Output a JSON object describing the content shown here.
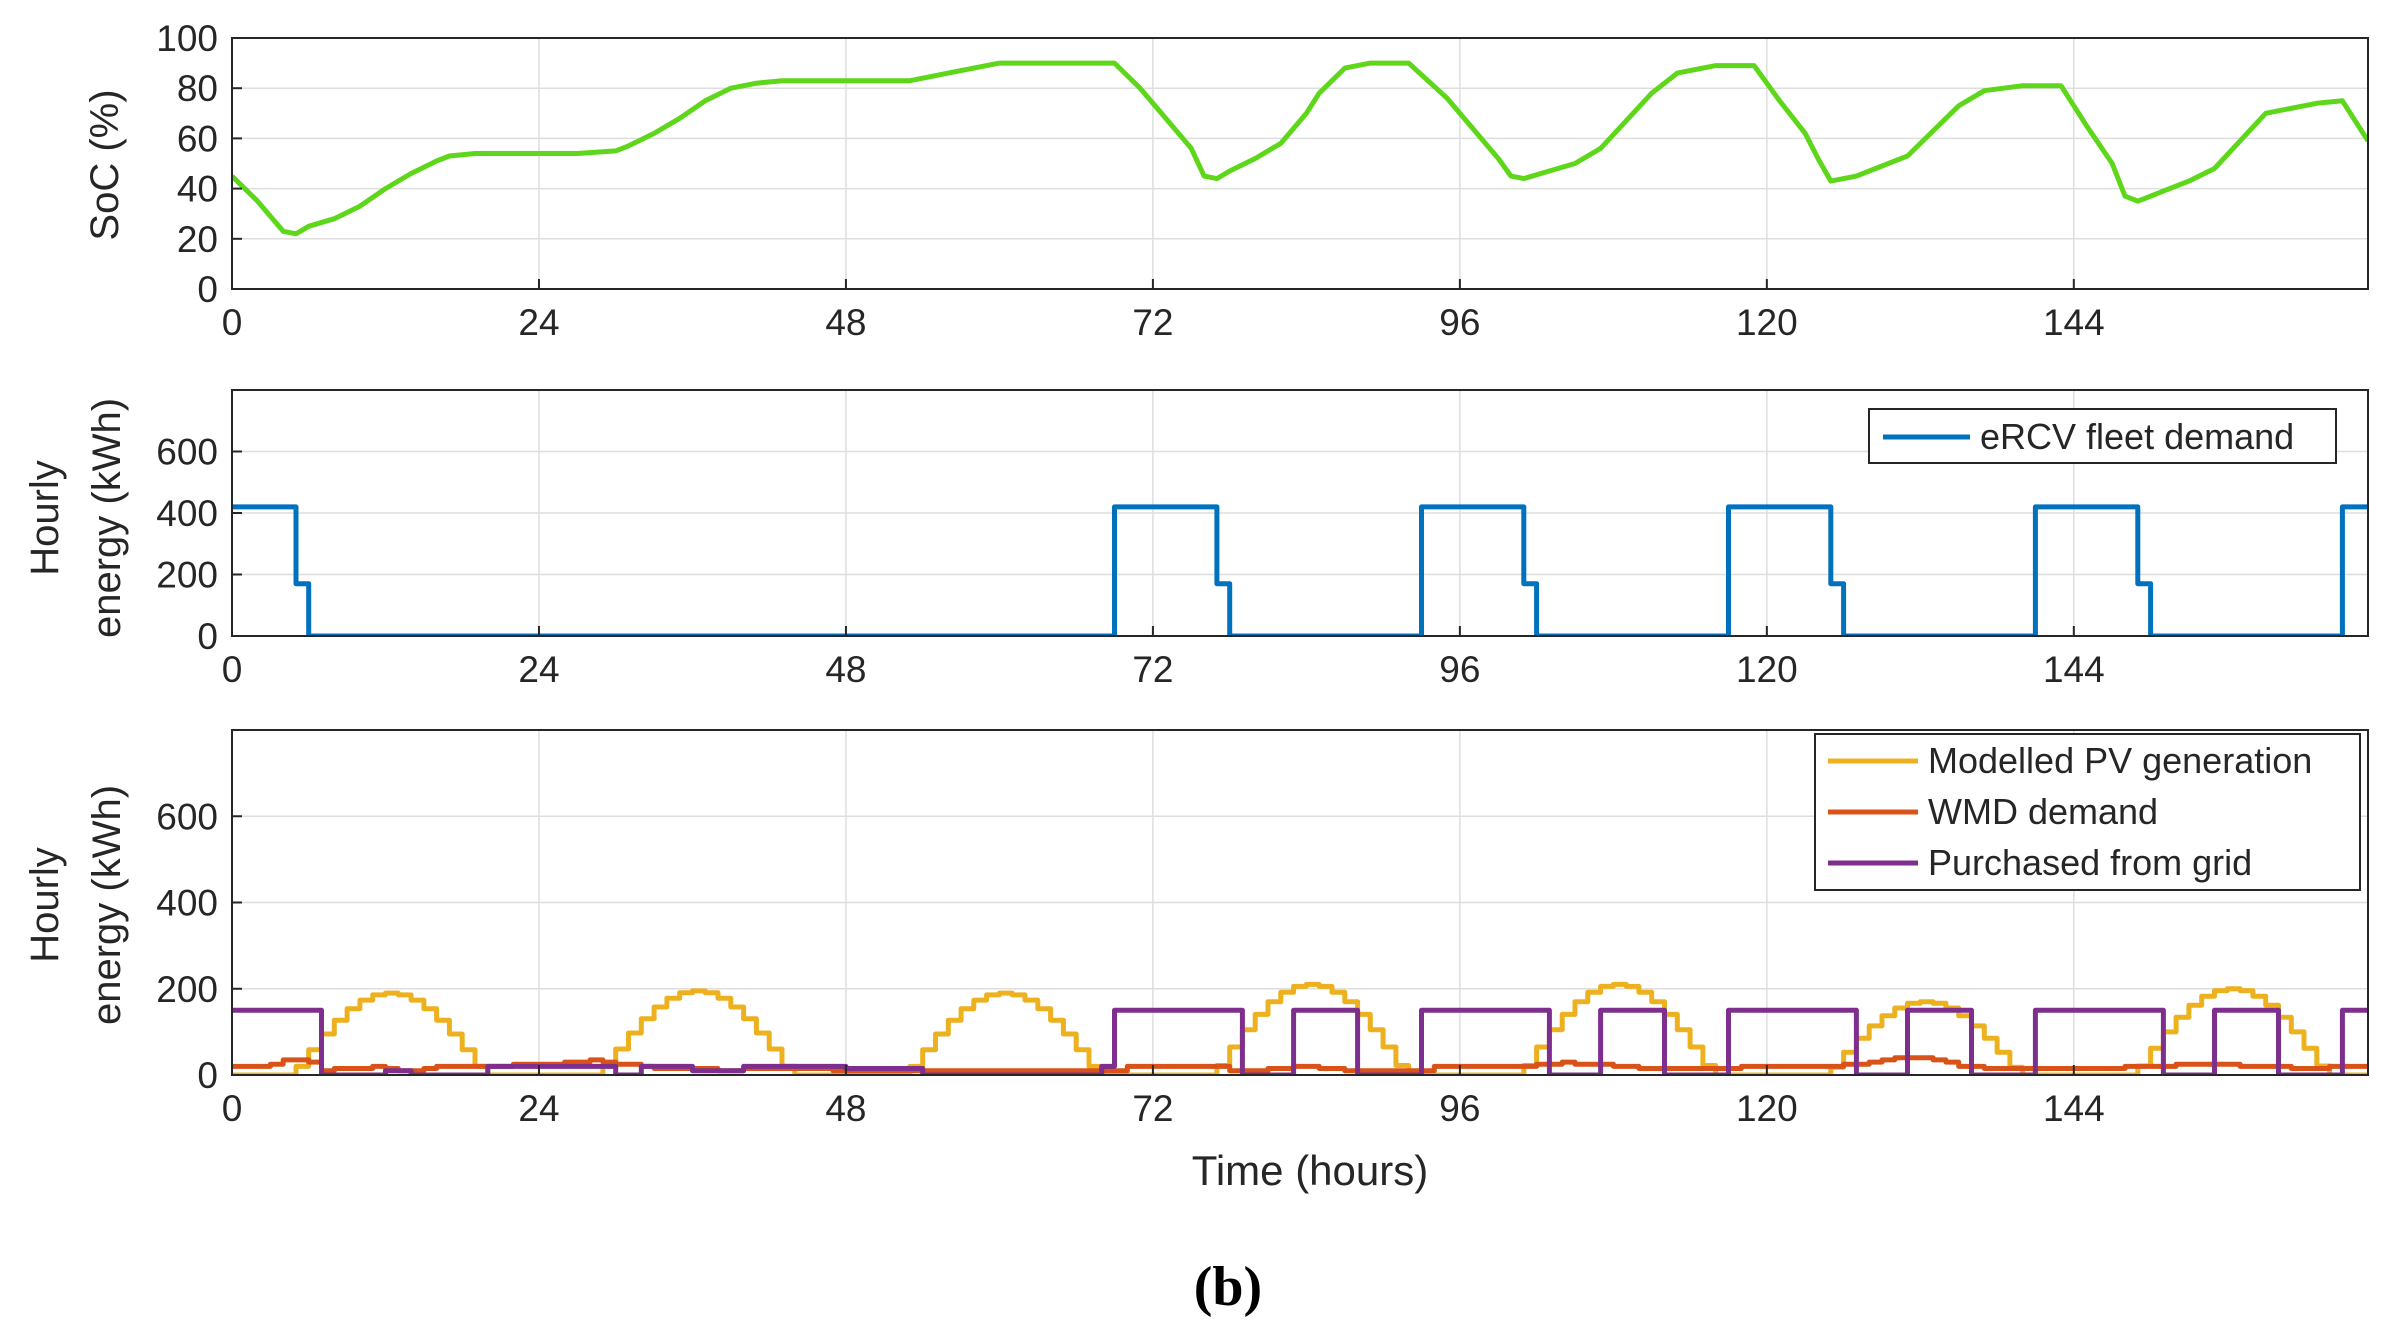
{
  "caption": "(b)",
  "chart_data": [
    {
      "type": "line",
      "ylabel": "SoC (%)",
      "xlabel": "",
      "xlim": [
        0,
        167
      ],
      "ylim": [
        0,
        100
      ],
      "xticks": [
        0,
        24,
        48,
        72,
        96,
        120,
        144
      ],
      "yticks": [
        0,
        20,
        40,
        60,
        80,
        100
      ],
      "grid": true,
      "series": [
        {
          "name": "SoC",
          "color": "#5ED61A",
          "x": [
            0,
            2,
            4,
            5,
            6,
            8,
            10,
            12,
            14,
            16,
            17,
            19,
            21,
            24,
            27,
            30,
            31,
            33,
            35,
            37,
            39,
            41,
            43,
            48,
            51,
            53,
            54,
            56,
            60,
            65,
            68,
            69,
            71,
            73,
            75,
            76,
            77,
            78,
            80,
            82,
            84,
            85,
            87,
            89,
            92,
            95,
            97,
            99,
            100,
            101,
            103,
            105,
            107,
            109,
            111,
            113,
            116,
            119,
            121,
            123,
            124,
            125,
            127,
            129,
            131,
            133,
            135,
            137,
            140,
            143,
            145,
            147,
            148,
            149,
            151,
            153,
            155,
            157,
            159,
            163,
            165,
            167
          ],
          "y": [
            45,
            35,
            23,
            22,
            25,
            28,
            33,
            40,
            46,
            51,
            53,
            54,
            54,
            54,
            54,
            55,
            57,
            62,
            68,
            75,
            80,
            82,
            83,
            83,
            83,
            83,
            84,
            86,
            90,
            90,
            90,
            90,
            80,
            68,
            56,
            45,
            44,
            47,
            52,
            58,
            70,
            78,
            88,
            90,
            90,
            76,
            64,
            52,
            45,
            44,
            47,
            50,
            56,
            67,
            78,
            86,
            89,
            89,
            75,
            62,
            52,
            43,
            45,
            49,
            53,
            63,
            73,
            79,
            81,
            81,
            65,
            50,
            37,
            35,
            39,
            43,
            48,
            59,
            70,
            74,
            75,
            59
          ]
        }
      ]
    },
    {
      "type": "line",
      "ylabel_line1": "Hourly",
      "ylabel_line2": "energy (kWh)",
      "xlabel": "",
      "xlim": [
        0,
        167
      ],
      "ylim": [
        0,
        800
      ],
      "xticks": [
        0,
        24,
        48,
        72,
        96,
        120,
        144
      ],
      "yticks": [
        0,
        200,
        400,
        600
      ],
      "grid": true,
      "legend_position": "top-right",
      "series": [
        {
          "name": "eRCV fleet demand",
          "color": "#0072BD",
          "x": [
            0,
            5,
            5,
            6,
            6,
            69,
            69,
            77,
            77,
            78,
            78,
            93,
            93,
            101,
            101,
            102,
            102,
            117,
            117,
            125,
            125,
            126,
            126,
            141,
            141,
            149,
            149,
            150,
            150,
            165,
            165,
            167
          ],
          "y": [
            420,
            420,
            170,
            170,
            0,
            0,
            420,
            420,
            170,
            170,
            0,
            0,
            420,
            420,
            170,
            170,
            0,
            0,
            420,
            420,
            170,
            170,
            0,
            0,
            420,
            420,
            170,
            170,
            0,
            0,
            420,
            420
          ]
        }
      ]
    },
    {
      "type": "line",
      "ylabel_line1": "Hourly",
      "ylabel_line2": "energy (kWh)",
      "xlabel": "Time (hours)",
      "xlim": [
        0,
        167
      ],
      "ylim": [
        0,
        800
      ],
      "xticks": [
        0,
        24,
        48,
        72,
        96,
        120,
        144
      ],
      "yticks": [
        0,
        200,
        400,
        600
      ],
      "grid": true,
      "legend_position": "top-right",
      "series": [
        {
          "name": "Modelled PV generation",
          "color": "#EDB120",
          "peaks": [
            190,
            195,
            190,
            210,
            210,
            170,
            200
          ]
        },
        {
          "name": "WMD demand",
          "color": "#D95319",
          "values": [
            20,
            20,
            20,
            25,
            35,
            35,
            30,
            10,
            15,
            15,
            15,
            20,
            15,
            10,
            10,
            15,
            20,
            20,
            20,
            20,
            20,
            20,
            25,
            25,
            25,
            25,
            30,
            30,
            35,
            30,
            25,
            25,
            20,
            15,
            15,
            15,
            15,
            15,
            10,
            10,
            15,
            15,
            15,
            15,
            15,
            15,
            15,
            10,
            10,
            10,
            10,
            10,
            10,
            10,
            10,
            10,
            10,
            10,
            10,
            10,
            10,
            10,
            10,
            10,
            10,
            10,
            10,
            10,
            10,
            10,
            20,
            20,
            20,
            20,
            20,
            20,
            20,
            20,
            10,
            10,
            10,
            15,
            15,
            20,
            20,
            15,
            15,
            10,
            10,
            10,
            10,
            10,
            10,
            10,
            20,
            20,
            20,
            20,
            20,
            20,
            20,
            20,
            25,
            25,
            30,
            25,
            25,
            25,
            20,
            20,
            15,
            15,
            15,
            15,
            15,
            15,
            15,
            15,
            20,
            20,
            20,
            20,
            20,
            20,
            20,
            20,
            25,
            25,
            30,
            35,
            40,
            40,
            40,
            35,
            30,
            20,
            20,
            15,
            15,
            15,
            15,
            15,
            15,
            15,
            15,
            15,
            15,
            15,
            20,
            20,
            20,
            20,
            25,
            25,
            25,
            25,
            25,
            20,
            20,
            20,
            20,
            15,
            15,
            15,
            20,
            20,
            20,
            20
          ]
        },
        {
          "name": "Purchased from grid",
          "color": "#7E2F8E",
          "x": [
            0,
            7,
            7,
            12,
            12,
            14,
            14,
            20,
            20,
            30,
            30,
            32,
            32,
            36,
            36,
            40,
            40,
            48,
            48,
            54,
            54,
            68,
            68,
            69,
            69,
            79,
            79,
            83,
            83,
            88,
            88,
            93,
            93,
            103,
            103,
            107,
            107,
            112,
            112,
            117,
            117,
            127,
            127,
            131,
            131,
            136,
            136,
            141,
            141,
            151,
            151,
            155,
            155,
            160,
            160,
            165,
            165,
            167
          ],
          "y": [
            150,
            150,
            0,
            0,
            10,
            10,
            0,
            0,
            20,
            20,
            0,
            0,
            20,
            20,
            10,
            10,
            20,
            20,
            15,
            15,
            0,
            0,
            20,
            20,
            150,
            150,
            0,
            0,
            150,
            150,
            0,
            0,
            150,
            150,
            0,
            0,
            150,
            150,
            0,
            0,
            150,
            150,
            0,
            0,
            150,
            150,
            0,
            0,
            150,
            150,
            0,
            0,
            150,
            150,
            0,
            0,
            150,
            150
          ]
        }
      ]
    }
  ]
}
